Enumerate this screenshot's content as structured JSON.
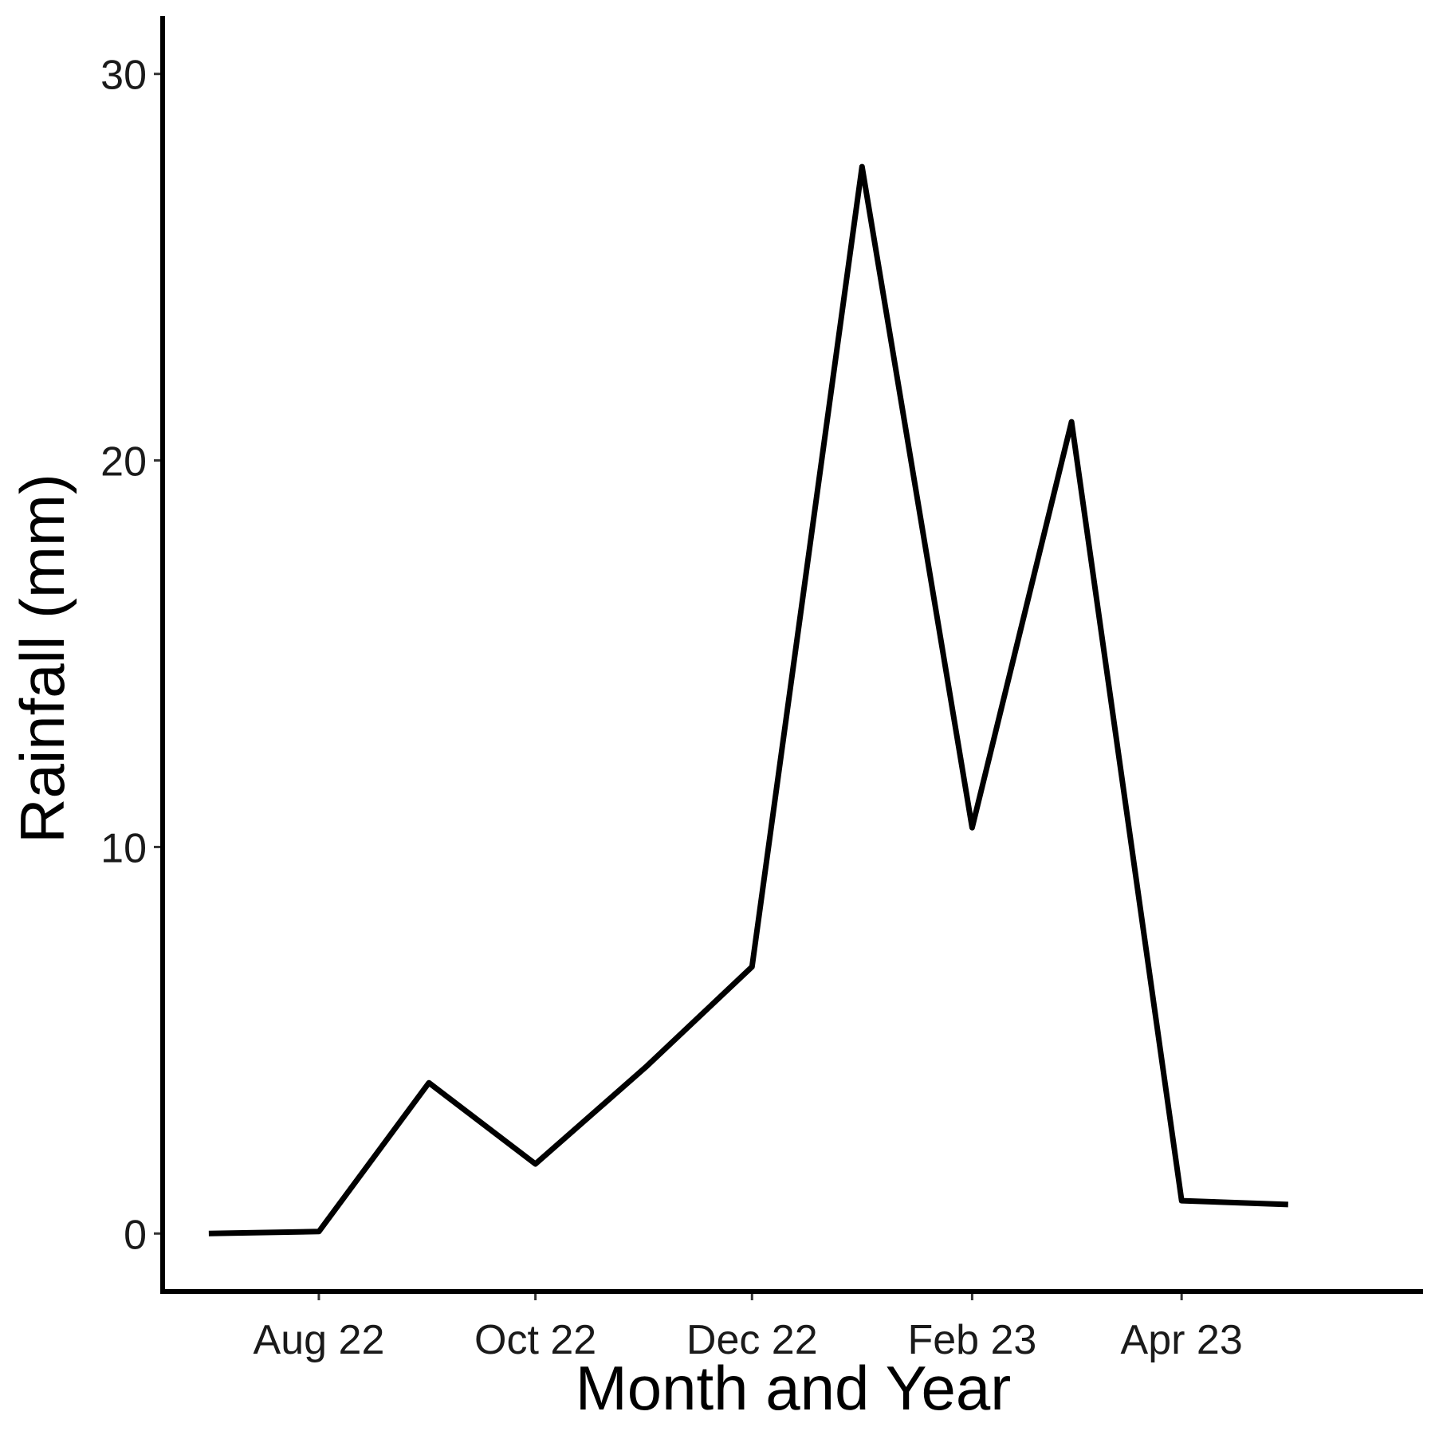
{
  "chart_data": {
    "type": "line",
    "title": "",
    "xlabel": "Month and Year",
    "ylabel": "Rainfall (mm)",
    "x_axis": {
      "type": "date",
      "range": [
        "2022-06-18",
        "2023-06-08"
      ],
      "ticks": [
        {
          "date": "2022-08-01",
          "label": "Aug 22"
        },
        {
          "date": "2022-10-01",
          "label": "Oct 22"
        },
        {
          "date": "2022-12-01",
          "label": "Dec 22"
        },
        {
          "date": "2023-02-01",
          "label": "Feb 23"
        },
        {
          "date": "2023-04-01",
          "label": "Apr 23"
        }
      ]
    },
    "y_axis": {
      "range": [
        -1.5,
        31.5
      ],
      "ticks": [
        0,
        10,
        20,
        30
      ]
    },
    "grid": false,
    "legend": "none",
    "series": [
      {
        "color": "#000000",
        "x": [
          "2022-07-01",
          "2022-08-01",
          "2022-09-01",
          "2022-10-01",
          "2022-11-01",
          "2022-12-01",
          "2023-01-01",
          "2023-02-01",
          "2023-03-01",
          "2023-04-01",
          "2023-05-01"
        ],
        "y": [
          0.0,
          0.05,
          3.9,
          1.8,
          4.3,
          6.9,
          27.6,
          10.5,
          21.0,
          0.85,
          0.75
        ]
      }
    ]
  }
}
